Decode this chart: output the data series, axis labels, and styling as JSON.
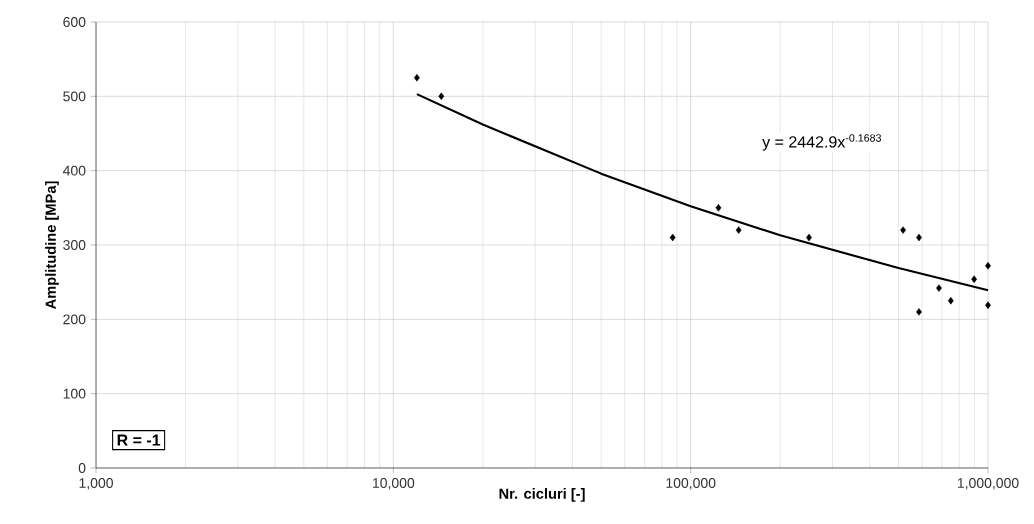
{
  "chart_data": {
    "type": "scatter",
    "xlabel": "Nr. cicluri [-]",
    "ylabel": "Amplitudine [MPa]",
    "log": "x",
    "grid": true,
    "xlim": [
      1000,
      1000000
    ],
    "xticks": [
      {
        "value": 1000,
        "label": "1,000"
      },
      {
        "value": 10000,
        "label": "10,000"
      },
      {
        "value": 100000,
        "label": "100,000"
      },
      {
        "value": 1000000,
        "label": "1,000,000"
      }
    ],
    "ylim": [
      0,
      600
    ],
    "yticks": [
      0,
      100,
      200,
      300,
      400,
      500,
      600
    ],
    "series": [
      {
        "color": "#000000",
        "marker": "diamond",
        "x": [
          12000,
          14500,
          87000,
          124000,
          145000,
          250000,
          518000,
          586000,
          586000,
          684000,
          750000,
          898000,
          1000000,
          1000000
        ],
        "values": [
          525,
          500,
          310,
          350,
          320,
          310,
          320,
          310,
          210,
          242,
          225,
          254,
          272,
          219
        ]
      },
      {
        "type": "line",
        "color": "#000000",
        "marker": "none",
        "line_style": "solid",
        "x": [
          12000,
          20000,
          50000,
          100000,
          200000,
          500000,
          1000000
        ],
        "values": [
          503,
          462,
          396,
          352,
          313,
          269,
          239
        ]
      }
    ],
    "annotations": [
      "y = 2442.9x$^{-0.1683}$",
      "R = -1"
    ]
  }
}
